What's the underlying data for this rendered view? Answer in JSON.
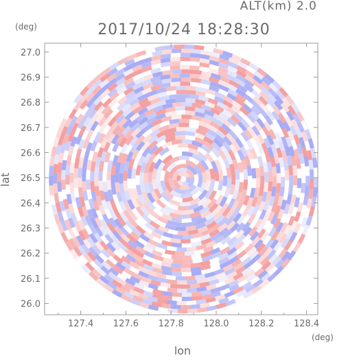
{
  "chart_data": {
    "type": "heatmap",
    "title": "2017/10/24 18:28:30",
    "subtitle": "ALT(km) 2.0",
    "xlabel": "lon",
    "ylabel": "lat",
    "x_unit": "(deg)",
    "y_unit": "(deg)",
    "xlim": [
      127.24,
      128.45
    ],
    "ylim": [
      25.955,
      27.035
    ],
    "x_ticks": [
      "127.4",
      "127.6",
      "127.8",
      "128.0",
      "128.2",
      "128.4"
    ],
    "y_ticks": [
      "26.0",
      "26.1",
      "26.2",
      "26.3",
      "26.4",
      "26.5",
      "26.6",
      "26.7",
      "26.8",
      "26.9",
      "27.0"
    ],
    "center": {
      "lon": 127.855,
      "lat": 26.495
    },
    "radius_deg_lat": 0.535,
    "radius_deg_lon": 0.598,
    "colors": {
      "positive": "#f4a0a0",
      "negative": "#a8acf4",
      "neutral": "#ffffff",
      "axis": "#9a9a9a",
      "text": "#6a6a6a"
    }
  }
}
